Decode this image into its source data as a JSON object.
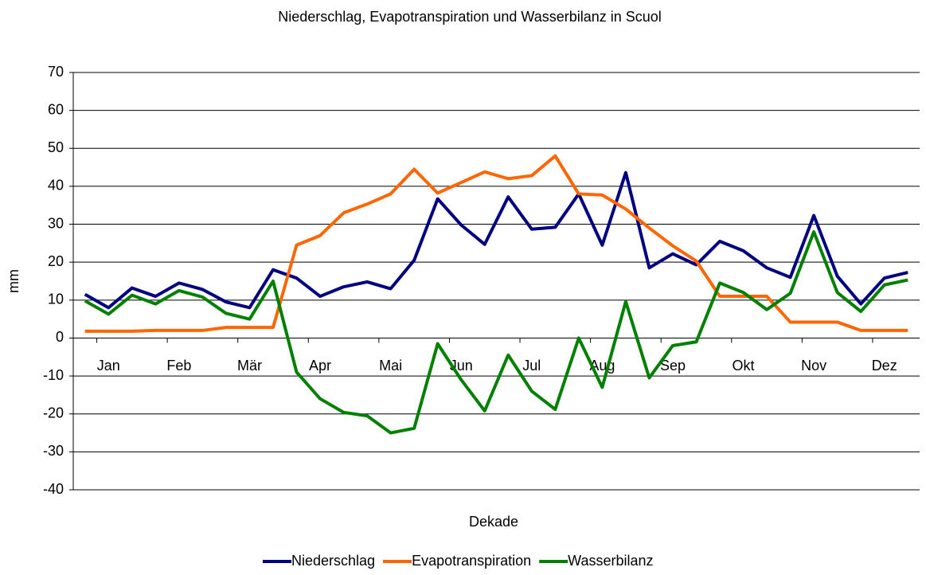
{
  "chart_data": {
    "type": "line",
    "title": "Niederschlag, Evapotranspiration und Wasserbilanz in Scuol",
    "x_label": "Dekade",
    "y_label": "mm",
    "categories": [
      null,
      "Jan",
      null,
      null,
      "Feb",
      null,
      null,
      "Mär",
      null,
      null,
      "Apr",
      null,
      null,
      "Mai",
      null,
      null,
      "Jun",
      null,
      null,
      "Jul",
      null,
      null,
      "Aug",
      null,
      null,
      "Sep",
      null,
      null,
      "Okt",
      null,
      null,
      "Nov",
      null,
      null,
      "Dez",
      null
    ],
    "series": [
      {
        "name": "Niederschlag",
        "color": "#000080",
        "values": [
          11.5,
          8,
          13.2,
          11,
          14.5,
          12.8,
          9.5,
          8,
          18,
          15.8,
          11,
          13.5,
          14.8,
          13,
          20.5,
          36.7,
          29.8,
          24.7,
          37.2,
          28.7,
          29.2,
          38,
          24.5,
          43.6,
          18.5,
          22.2,
          19.3,
          25.5,
          23,
          18.5,
          16,
          32.3,
          16.3,
          9,
          15.8,
          17.3
        ]
      },
      {
        "name": "Evapotranspiration",
        "color": "#ff6600",
        "values": [
          1.8,
          1.8,
          1.8,
          2,
          2,
          2,
          2.8,
          2.8,
          2.8,
          24.5,
          27,
          33,
          35.3,
          38,
          44.5,
          38.2,
          41,
          43.8,
          42,
          42.8,
          48,
          38,
          37.7,
          34,
          29,
          24.3,
          20.3,
          11,
          11,
          11,
          4.2,
          4.2,
          4.2,
          2,
          2,
          2
        ]
      },
      {
        "name": "Wasserbilanz",
        "color": "#008000",
        "values": [
          9.8,
          6.3,
          11.3,
          9,
          12.5,
          10.8,
          6.5,
          5,
          15,
          -9,
          -16,
          -19.6,
          -20.5,
          -25,
          -23.8,
          -1.5,
          -11,
          -19.2,
          -4.5,
          -14,
          -18.8,
          0,
          -13,
          9.6,
          -10.5,
          -2,
          -1,
          14.5,
          12,
          7.5,
          11.8,
          28,
          12,
          7,
          14,
          15.3
        ]
      }
    ],
    "ylim": [
      -40,
      70
    ],
    "yticks": [
      -40,
      -30,
      -20,
      -10,
      0,
      10,
      20,
      30,
      40,
      50,
      60,
      70
    ],
    "grid": true,
    "legend": "bottom"
  }
}
